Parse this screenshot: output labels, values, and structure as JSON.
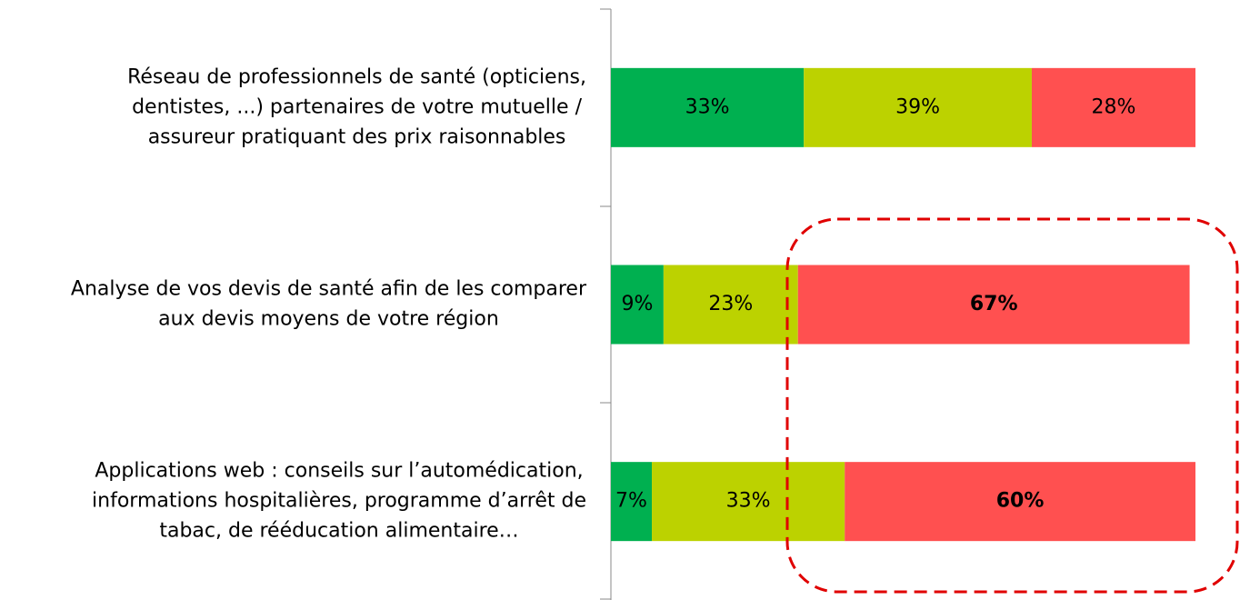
{
  "chart_data": {
    "type": "stacked_barh",
    "categories": [
      [
        "Réseau de professionnels de santé (opticiens,",
        "dentistes, ...) partenaires de votre mutuelle /",
        "assureur pratiquant des prix raisonnables"
      ],
      [
        "Analyse de vos devis de santé afin de les comparer",
        "aux devis moyens de votre région"
      ],
      [
        "Applications web : conseils sur l’automédication,",
        "informations hospitalières, programme d’arrêt de",
        "tabac, de rééducation alimentaire…"
      ]
    ],
    "series": [
      {
        "color": "#00b050",
        "values": [
          33,
          9,
          7
        ],
        "value_labels": [
          "33%",
          "9%",
          "7%"
        ],
        "bold": [
          false,
          false,
          false
        ]
      },
      {
        "color": "#bcd200",
        "values": [
          39,
          23,
          33
        ],
        "value_labels": [
          "39%",
          "23%",
          "33%"
        ],
        "bold": [
          false,
          false,
          false
        ]
      },
      {
        "color": "#ff5050",
        "values": [
          28,
          67,
          60
        ],
        "value_labels": [
          "28%",
          "67%",
          "60%"
        ],
        "bold": [
          false,
          true,
          true
        ]
      }
    ],
    "xlim": [
      0,
      100
    ]
  }
}
